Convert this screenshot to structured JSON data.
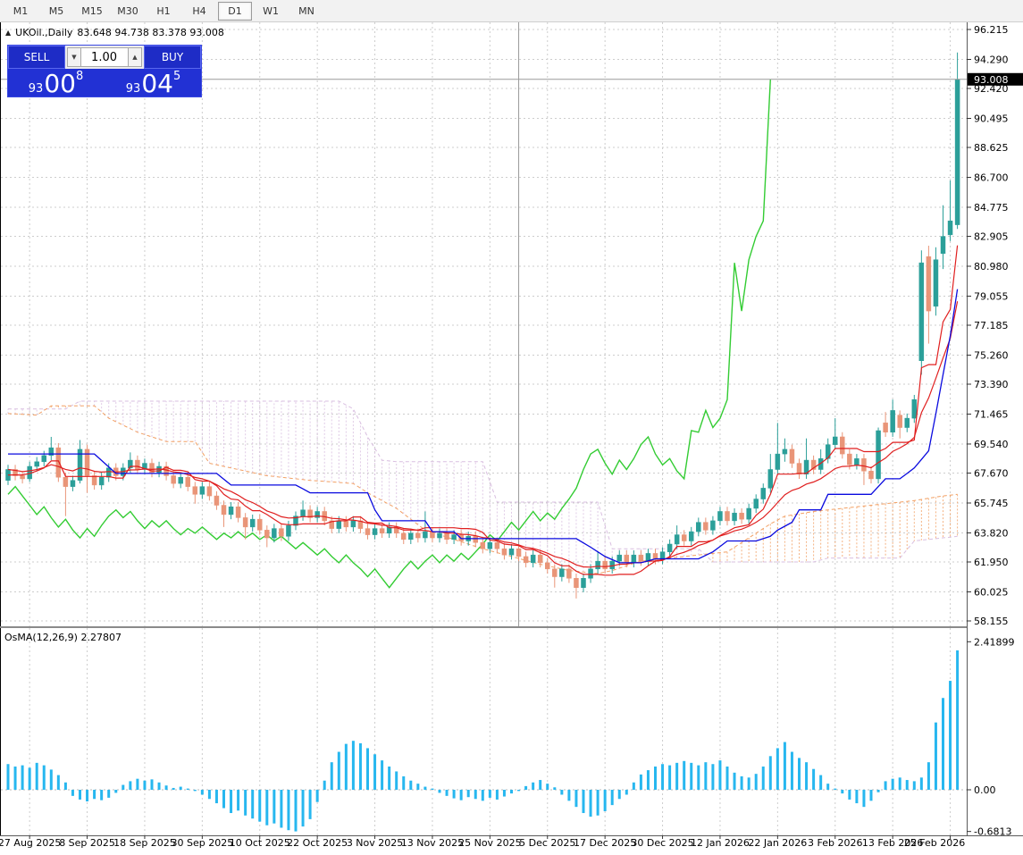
{
  "toolbar": {
    "timeframes": [
      "M1",
      "M5",
      "M15",
      "M30",
      "H1",
      "H4",
      "D1",
      "W1",
      "MN"
    ],
    "active": "D1"
  },
  "title": {
    "collapse_icon": "▲",
    "symbol": "UKOil.,Daily",
    "ohlc": "83.648 94.738 83.378 93.008"
  },
  "trade_panel": {
    "sell_label": "SELL",
    "buy_label": "BUY",
    "volume": "1.00",
    "spin_down_icon": "▼",
    "spin_up_icon": "▲",
    "sell_price": {
      "small": "93",
      "big": "00",
      "sup": "8"
    },
    "buy_price": {
      "small": "93",
      "big": "04",
      "sup": "5"
    }
  },
  "osma_panel": {
    "label": "OsMA(12,26,9)",
    "value": "2.27807",
    "axis_labels": [
      "2.41899",
      "0.00",
      "-0.6813"
    ]
  },
  "price_axis": {
    "labels": [
      "96.215",
      "94.290",
      "92.420",
      "90.495",
      "88.625",
      "86.700",
      "84.775",
      "82.905",
      "80.980",
      "79.055",
      "77.185",
      "75.260",
      "73.390",
      "71.465",
      "69.540",
      "67.670",
      "65.745",
      "63.820",
      "61.950",
      "60.025",
      "58.155"
    ],
    "current_price": "93.008"
  },
  "date_axis": {
    "labels": [
      "27 Aug 2025",
      "8 Sep 2025",
      "18 Sep 2025",
      "30 Sep 2025",
      "10 Oct 2025",
      "22 Oct 2025",
      "3 Nov 2025",
      "13 Nov 2025",
      "25 Nov 2025",
      "5 Dec 2025",
      "17 Dec 2025",
      "30 Dec 2025",
      "12 Jan 2026",
      "22 Jan 2026",
      "3 Feb 2026",
      "13 Feb 2026",
      "25 Feb 2026"
    ]
  },
  "colors": {
    "up_candle": "#2b9f99",
    "down_candle": "#e99578",
    "tenkan_red": "#e01f1f",
    "ema_red": "#e01f1f",
    "kijun_blue": "#0a0adf",
    "chikou_green": "#33cc33",
    "span_a_sandy": "#f2a064",
    "span_b_thistle": "#d9bfe0",
    "histogram_cyan": "#27b7ef",
    "grid": "#cdcdcd",
    "price_line": "#9a9a9a",
    "price_tag_bg": "#000000",
    "price_tag_text": "#ffffff"
  },
  "chart_data": {
    "type": "candlestick",
    "title": "UKOil.,Daily",
    "indicator_main": "Ichimoku Kinko Hyo (9,26,52) + red MA",
    "indicator_sub": "OsMA(12,26,9)",
    "price_range": [
      58.155,
      96.215
    ],
    "osma_range": [
      -0.6813,
      2.41899
    ],
    "osma_current": 2.27807,
    "last_bar_ohlc": [
      83.648,
      94.738,
      83.378,
      93.008
    ],
    "candles": [
      [
        67.2,
        68.2,
        66.9,
        67.9
      ],
      [
        67.9,
        68.2,
        67.2,
        67.5
      ],
      [
        67.5,
        67.8,
        67.0,
        67.3
      ],
      [
        67.3,
        68.4,
        67.1,
        68.1
      ],
      [
        68.1,
        68.7,
        67.8,
        68.4
      ],
      [
        68.4,
        69.1,
        68.1,
        68.8
      ],
      [
        68.8,
        70.0,
        68.5,
        69.3
      ],
      [
        69.3,
        69.6,
        67.1,
        67.4
      ],
      [
        67.4,
        67.7,
        64.9,
        66.8
      ],
      [
        66.8,
        67.5,
        66.5,
        67.2
      ],
      [
        67.2,
        69.8,
        67.0,
        69.2
      ],
      [
        69.2,
        69.5,
        66.4,
        67.5
      ],
      [
        67.5,
        67.8,
        66.6,
        66.9
      ],
      [
        66.9,
        67.7,
        66.6,
        67.4
      ],
      [
        67.4,
        68.3,
        67.1,
        68.0
      ],
      [
        68.0,
        68.3,
        67.2,
        67.5
      ],
      [
        67.5,
        68.3,
        67.2,
        68.0
      ],
      [
        68.0,
        69.0,
        67.7,
        68.5
      ],
      [
        68.5,
        68.8,
        67.6,
        67.9
      ],
      [
        67.9,
        68.6,
        67.6,
        68.3
      ],
      [
        68.3,
        68.6,
        67.4,
        67.7
      ],
      [
        67.7,
        68.4,
        67.4,
        68.1
      ],
      [
        68.1,
        68.4,
        67.2,
        67.5
      ],
      [
        67.5,
        67.8,
        66.7,
        67.0
      ],
      [
        67.0,
        67.7,
        66.7,
        67.4
      ],
      [
        67.4,
        67.7,
        66.5,
        66.8
      ],
      [
        66.8,
        67.1,
        65.7,
        66.3
      ],
      [
        66.3,
        67.1,
        66.0,
        66.8
      ],
      [
        66.8,
        67.1,
        65.9,
        66.2
      ],
      [
        66.2,
        66.5,
        65.3,
        65.6
      ],
      [
        65.6,
        65.9,
        64.2,
        65.0
      ],
      [
        65.0,
        65.8,
        64.7,
        65.5
      ],
      [
        65.5,
        65.8,
        64.5,
        64.8
      ],
      [
        64.8,
        65.1,
        63.4,
        64.2
      ],
      [
        64.2,
        65.0,
        63.9,
        64.7
      ],
      [
        64.7,
        65.0,
        63.7,
        64.0
      ],
      [
        64.0,
        64.3,
        62.9,
        63.5
      ],
      [
        63.5,
        64.4,
        63.2,
        64.1
      ],
      [
        64.1,
        64.4,
        63.3,
        63.6
      ],
      [
        63.6,
        64.6,
        63.3,
        64.3
      ],
      [
        64.3,
        65.2,
        64.0,
        64.9
      ],
      [
        64.9,
        65.9,
        64.6,
        65.3
      ],
      [
        65.3,
        65.6,
        64.5,
        64.8
      ],
      [
        64.8,
        65.5,
        64.5,
        65.2
      ],
      [
        65.2,
        65.5,
        64.3,
        64.6
      ],
      [
        64.6,
        64.9,
        63.8,
        64.1
      ],
      [
        64.1,
        64.9,
        63.8,
        64.6
      ],
      [
        64.6,
        64.9,
        63.9,
        64.2
      ],
      [
        64.2,
        64.9,
        63.9,
        64.6
      ],
      [
        64.6,
        64.9,
        63.8,
        64.1
      ],
      [
        64.1,
        64.4,
        63.4,
        63.7
      ],
      [
        63.7,
        64.4,
        63.4,
        64.1
      ],
      [
        64.1,
        64.4,
        63.5,
        63.8
      ],
      [
        63.8,
        64.5,
        63.5,
        64.2
      ],
      [
        64.2,
        64.5,
        63.5,
        63.8
      ],
      [
        63.8,
        64.1,
        63.1,
        63.4
      ],
      [
        63.4,
        64.1,
        63.1,
        63.8
      ],
      [
        63.8,
        64.1,
        63.2,
        63.5
      ],
      [
        63.5,
        65.2,
        63.2,
        63.9
      ],
      [
        63.9,
        64.2,
        63.2,
        63.5
      ],
      [
        63.5,
        64.1,
        63.2,
        63.8
      ],
      [
        63.8,
        64.1,
        63.1,
        63.4
      ],
      [
        63.4,
        64.0,
        63.1,
        63.7
      ],
      [
        63.7,
        64.0,
        63.0,
        63.3
      ],
      [
        63.3,
        63.9,
        63.0,
        63.6
      ],
      [
        63.6,
        63.9,
        62.9,
        63.2
      ],
      [
        63.2,
        63.5,
        62.5,
        62.8
      ],
      [
        62.8,
        63.5,
        62.5,
        63.2
      ],
      [
        63.2,
        63.5,
        62.5,
        62.8
      ],
      [
        62.8,
        63.1,
        62.1,
        62.4
      ],
      [
        62.4,
        63.1,
        62.1,
        62.8
      ],
      [
        62.8,
        63.1,
        62.0,
        62.3
      ],
      [
        62.3,
        62.6,
        61.6,
        61.9
      ],
      [
        61.9,
        62.7,
        61.6,
        62.4
      ],
      [
        62.4,
        62.7,
        61.6,
        61.9
      ],
      [
        61.9,
        62.2,
        61.2,
        61.5
      ],
      [
        61.5,
        61.8,
        60.3,
        61.0
      ],
      [
        61.0,
        61.8,
        60.7,
        61.5
      ],
      [
        61.5,
        61.8,
        60.6,
        60.9
      ],
      [
        60.9,
        61.2,
        59.6,
        60.3
      ],
      [
        60.3,
        61.2,
        60.0,
        60.9
      ],
      [
        60.9,
        61.8,
        60.6,
        61.5
      ],
      [
        61.5,
        62.6,
        61.2,
        62.0
      ],
      [
        62.0,
        62.3,
        61.2,
        61.5
      ],
      [
        61.5,
        62.3,
        61.2,
        62.0
      ],
      [
        62.0,
        62.7,
        61.7,
        62.4
      ],
      [
        62.4,
        62.7,
        61.6,
        61.9
      ],
      [
        61.9,
        62.7,
        61.6,
        62.4
      ],
      [
        62.4,
        62.7,
        61.7,
        62.0
      ],
      [
        62.0,
        62.8,
        61.7,
        62.5
      ],
      [
        62.5,
        62.8,
        61.8,
        62.1
      ],
      [
        62.1,
        62.9,
        61.8,
        62.6
      ],
      [
        62.6,
        63.4,
        62.3,
        63.1
      ],
      [
        63.1,
        64.3,
        62.8,
        63.7
      ],
      [
        63.7,
        64.0,
        63.0,
        63.3
      ],
      [
        63.3,
        64.2,
        63.0,
        63.9
      ],
      [
        63.9,
        64.8,
        63.6,
        64.5
      ],
      [
        64.5,
        64.8,
        63.7,
        64.0
      ],
      [
        64.0,
        64.9,
        63.7,
        64.6
      ],
      [
        64.6,
        65.5,
        64.3,
        65.2
      ],
      [
        65.2,
        65.5,
        64.3,
        64.6
      ],
      [
        64.6,
        65.4,
        64.3,
        65.1
      ],
      [
        65.1,
        65.4,
        64.4,
        64.7
      ],
      [
        64.7,
        65.7,
        64.4,
        65.4
      ],
      [
        65.4,
        66.3,
        65.1,
        66.0
      ],
      [
        66.0,
        67.0,
        65.7,
        66.7
      ],
      [
        66.7,
        68.9,
        66.4,
        67.9
      ],
      [
        67.9,
        70.9,
        67.6,
        68.9
      ],
      [
        68.9,
        69.9,
        68.4,
        69.2
      ],
      [
        69.2,
        69.5,
        68.0,
        68.3
      ],
      [
        68.3,
        68.6,
        67.3,
        67.6
      ],
      [
        67.6,
        69.9,
        67.3,
        68.5
      ],
      [
        68.5,
        68.8,
        67.6,
        67.9
      ],
      [
        67.9,
        69.2,
        67.6,
        68.6
      ],
      [
        68.6,
        69.9,
        68.3,
        69.5
      ],
      [
        69.5,
        71.2,
        69.2,
        70.0
      ],
      [
        70.0,
        70.3,
        68.6,
        68.9
      ],
      [
        68.9,
        69.2,
        67.9,
        68.2
      ],
      [
        68.2,
        68.9,
        67.9,
        68.6
      ],
      [
        68.6,
        68.9,
        66.9,
        67.8
      ],
      [
        67.8,
        68.1,
        67.0,
        67.3
      ],
      [
        67.3,
        70.6,
        67.0,
        70.4
      ],
      [
        70.9,
        71.6,
        70.0,
        70.3
      ],
      [
        70.3,
        72.4,
        70.0,
        71.7
      ],
      [
        71.4,
        71.7,
        69.9,
        70.6
      ],
      [
        70.6,
        71.5,
        70.3,
        71.2
      ],
      [
        71.2,
        72.7,
        70.9,
        72.4
      ],
      [
        74.9,
        82.0,
        74.0,
        81.2
      ],
      [
        81.6,
        82.3,
        76.0,
        78.1
      ],
      [
        78.4,
        82.2,
        77.8,
        81.4
      ],
      [
        81.8,
        84.9,
        80.8,
        82.9
      ],
      [
        83.0,
        86.5,
        82.6,
        83.9
      ],
      [
        83.648,
        94.738,
        83.378,
        93.008
      ]
    ],
    "kijun_points": [
      [
        0,
        68.9
      ],
      [
        12,
        68.9
      ],
      [
        15,
        67.65
      ],
      [
        29,
        67.65
      ],
      [
        31,
        66.9
      ],
      [
        40,
        66.9
      ],
      [
        42,
        66.4
      ],
      [
        50,
        66.4
      ],
      [
        51,
        65.3
      ],
      [
        52,
        64.6
      ],
      [
        58,
        64.6
      ],
      [
        59,
        63.9
      ],
      [
        62,
        63.9
      ],
      [
        63,
        63.45
      ],
      [
        79,
        63.45
      ],
      [
        81,
        62.9
      ],
      [
        83,
        62.3
      ],
      [
        85,
        61.9
      ],
      [
        88,
        61.9
      ],
      [
        90,
        62.15
      ],
      [
        96,
        62.15
      ],
      [
        98,
        62.6
      ],
      [
        100,
        63.3
      ],
      [
        104,
        63.3
      ],
      [
        106,
        63.6
      ],
      [
        107,
        64.0
      ],
      [
        109,
        64.5
      ],
      [
        110,
        65.3
      ],
      [
        113,
        65.3
      ],
      [
        114,
        66.3
      ],
      [
        120,
        66.3
      ],
      [
        122,
        67.3
      ],
      [
        124,
        67.3
      ],
      [
        126,
        68.0
      ],
      [
        128,
        69.1
      ],
      [
        129,
        71.5
      ],
      [
        130,
        74.0
      ],
      [
        131,
        76.5
      ],
      [
        132,
        79.5
      ]
    ],
    "span_a_points": [
      [
        0,
        71.5
      ],
      [
        4,
        71.4
      ],
      [
        6,
        72.0
      ],
      [
        12,
        72.0
      ],
      [
        14,
        71.2
      ],
      [
        18,
        70.3
      ],
      [
        22,
        69.7
      ],
      [
        26,
        69.7
      ],
      [
        28,
        68.3
      ],
      [
        32,
        67.9
      ],
      [
        36,
        67.5
      ],
      [
        42,
        67.2
      ],
      [
        48,
        67.0
      ],
      [
        50,
        66.4
      ],
      [
        54,
        65.4
      ],
      [
        56,
        64.7
      ],
      [
        58,
        64.0
      ],
      [
        62,
        63.4
      ],
      [
        66,
        62.8
      ],
      [
        70,
        62.3
      ],
      [
        74,
        61.8
      ],
      [
        78,
        61.4
      ],
      [
        82,
        61.2
      ],
      [
        84,
        61.4
      ],
      [
        86,
        61.7
      ],
      [
        88,
        62.0
      ],
      [
        92,
        62.2
      ],
      [
        96,
        62.4
      ],
      [
        100,
        62.6
      ],
      [
        102,
        63.2
      ],
      [
        104,
        63.8
      ],
      [
        106,
        64.4
      ],
      [
        108,
        64.9
      ],
      [
        112,
        65.2
      ],
      [
        116,
        65.4
      ],
      [
        120,
        65.6
      ],
      [
        126,
        65.9
      ],
      [
        130,
        66.2
      ],
      [
        132,
        66.3
      ]
    ],
    "span_b_points": [
      [
        0,
        71.8
      ],
      [
        8,
        71.8
      ],
      [
        10,
        72.3
      ],
      [
        46,
        72.3
      ],
      [
        48,
        71.8
      ],
      [
        50,
        70.0
      ],
      [
        52,
        68.5
      ],
      [
        54,
        68.4
      ],
      [
        66,
        68.4
      ],
      [
        68,
        65.8
      ],
      [
        82,
        65.8
      ],
      [
        84,
        62.8
      ],
      [
        96,
        62.8
      ],
      [
        98,
        61.95
      ],
      [
        112,
        61.95
      ],
      [
        114,
        62.2
      ],
      [
        124,
        62.2
      ],
      [
        126,
        63.3
      ],
      [
        132,
        63.6
      ]
    ],
    "osma_values": [
      0.42,
      0.38,
      0.4,
      0.36,
      0.44,
      0.4,
      0.33,
      0.24,
      0.12,
      -0.1,
      -0.16,
      -0.19,
      -0.15,
      -0.17,
      -0.13,
      -0.05,
      0.08,
      0.14,
      0.18,
      0.15,
      0.17,
      0.12,
      0.07,
      0.03,
      0.05,
      0.02,
      -0.02,
      -0.08,
      -0.15,
      -0.22,
      -0.3,
      -0.38,
      -0.34,
      -0.42,
      -0.47,
      -0.52,
      -0.58,
      -0.55,
      -0.62,
      -0.66,
      -0.68,
      -0.6,
      -0.48,
      -0.2,
      0.15,
      0.45,
      0.62,
      0.75,
      0.8,
      0.76,
      0.68,
      0.58,
      0.48,
      0.38,
      0.3,
      0.22,
      0.15,
      0.1,
      0.05,
      0.02,
      -0.05,
      -0.1,
      -0.14,
      -0.17,
      -0.12,
      -0.15,
      -0.18,
      -0.13,
      -0.16,
      -0.11,
      -0.06,
      -0.02,
      0.06,
      0.12,
      0.16,
      0.1,
      0.04,
      -0.08,
      -0.18,
      -0.28,
      -0.38,
      -0.44,
      -0.42,
      -0.35,
      -0.25,
      -0.15,
      -0.08,
      0.12,
      0.25,
      0.32,
      0.38,
      0.42,
      0.4,
      0.44,
      0.47,
      0.44,
      0.4,
      0.45,
      0.42,
      0.48,
      0.38,
      0.28,
      0.22,
      0.2,
      0.26,
      0.38,
      0.55,
      0.68,
      0.78,
      0.62,
      0.52,
      0.45,
      0.34,
      0.24,
      0.1,
      0.02,
      -0.06,
      -0.16,
      -0.22,
      -0.28,
      -0.18,
      -0.04,
      0.14,
      0.18,
      0.2,
      0.16,
      0.14,
      0.2,
      0.45,
      1.1,
      1.5,
      1.78,
      2.27807
    ],
    "price_line_value": 93.008,
    "separator_bar": 71
  }
}
